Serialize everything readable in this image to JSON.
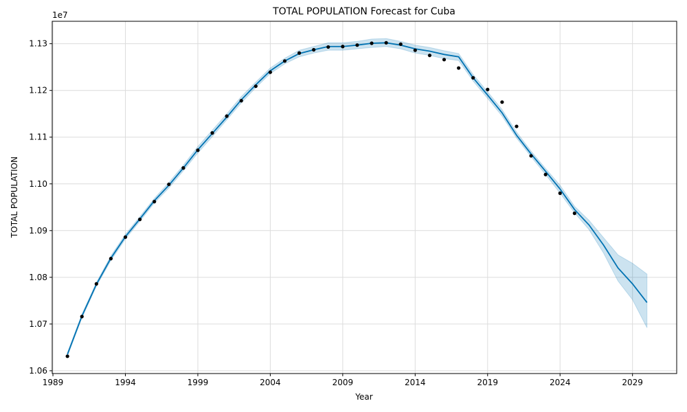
{
  "chart_data": {
    "type": "line",
    "title": "TOTAL POPULATION Forecast for Cuba",
    "xlabel": "Year",
    "ylabel": "TOTAL POPULATION",
    "y_scale_label": "1e7",
    "xlim": [
      1988.95,
      2032.05
    ],
    "ylim": [
      10.594,
      11.348
    ],
    "x_ticks": [
      1989,
      1994,
      1999,
      2004,
      2009,
      2014,
      2019,
      2024,
      2029
    ],
    "y_ticks": [
      1.06,
      1.07,
      1.08,
      1.09,
      1.1,
      1.11,
      1.12,
      1.13
    ],
    "y_tick_scale": 10,
    "grid": true,
    "colors": {
      "forecast_line": "#0072b2",
      "uncertainty_band": "#0072b2",
      "observed_points": "#000000",
      "grid": "#dcdcdc"
    },
    "observed": {
      "x": [
        1990,
        1991,
        1992,
        1993,
        1994,
        1995,
        1996,
        1997,
        1998,
        1999,
        2000,
        2001,
        2002,
        2003,
        2004,
        2005,
        2006,
        2007,
        2008,
        2009,
        2010,
        2011,
        2012,
        2013,
        2014,
        2015,
        2016,
        2017,
        2018,
        2019,
        2020,
        2021,
        2022,
        2023,
        2024,
        2025
      ],
      "y": [
        10.631,
        10.716,
        10.786,
        10.84,
        10.886,
        10.924,
        10.962,
        10.999,
        11.034,
        11.072,
        11.109,
        11.145,
        11.178,
        11.209,
        11.239,
        11.263,
        11.28,
        11.287,
        11.293,
        11.294,
        11.297,
        11.301,
        11.302,
        11.299,
        11.286,
        11.275,
        11.266,
        11.248,
        11.227,
        11.202,
        11.175,
        11.123,
        11.06,
        11.02,
        10.98,
        10.937
      ]
    },
    "forecast": {
      "x": [
        1990,
        1991,
        1992,
        1993,
        1994,
        1995,
        1996,
        1997,
        1998,
        1999,
        2000,
        2001,
        2002,
        2003,
        2004,
        2005,
        2006,
        2007,
        2008,
        2009,
        2010,
        2011,
        2012,
        2013,
        2014,
        2015,
        2016,
        2017,
        2018,
        2019,
        2020,
        2021,
        2022,
        2023,
        2024,
        2025,
        2026,
        2027,
        2028,
        2029,
        2030
      ],
      "yhat": [
        10.635,
        10.717,
        10.785,
        10.841,
        10.887,
        10.925,
        10.964,
        10.997,
        11.034,
        11.073,
        11.108,
        11.143,
        11.18,
        11.212,
        11.242,
        11.263,
        11.279,
        11.287,
        11.294,
        11.294,
        11.297,
        11.301,
        11.302,
        11.297,
        11.289,
        11.284,
        11.277,
        11.272,
        11.227,
        11.19,
        11.152,
        11.104,
        11.064,
        11.027,
        10.989,
        10.945,
        10.912,
        10.869,
        10.82,
        10.786,
        10.746
      ],
      "yhat_lower": [
        10.631,
        10.713,
        10.781,
        10.836,
        10.882,
        10.92,
        10.959,
        10.991,
        11.028,
        11.066,
        11.101,
        11.137,
        11.173,
        11.206,
        11.236,
        11.257,
        11.272,
        11.28,
        11.286,
        11.286,
        11.289,
        11.292,
        11.294,
        11.289,
        11.28,
        11.275,
        11.268,
        11.264,
        11.22,
        11.183,
        11.145,
        11.098,
        11.058,
        11.02,
        10.98,
        10.938,
        10.902,
        10.852,
        10.792,
        10.752,
        10.692
      ],
      "yhat_upper": [
        10.639,
        10.721,
        10.789,
        10.846,
        10.892,
        10.93,
        10.969,
        11.003,
        11.04,
        11.08,
        11.115,
        11.15,
        11.187,
        11.218,
        11.248,
        11.269,
        11.286,
        11.294,
        11.302,
        11.302,
        11.305,
        11.31,
        11.311,
        11.305,
        11.297,
        11.292,
        11.285,
        11.279,
        11.234,
        11.197,
        11.159,
        11.111,
        11.07,
        11.033,
        10.997,
        10.952,
        10.922,
        10.885,
        10.848,
        10.83,
        10.807
      ]
    }
  }
}
